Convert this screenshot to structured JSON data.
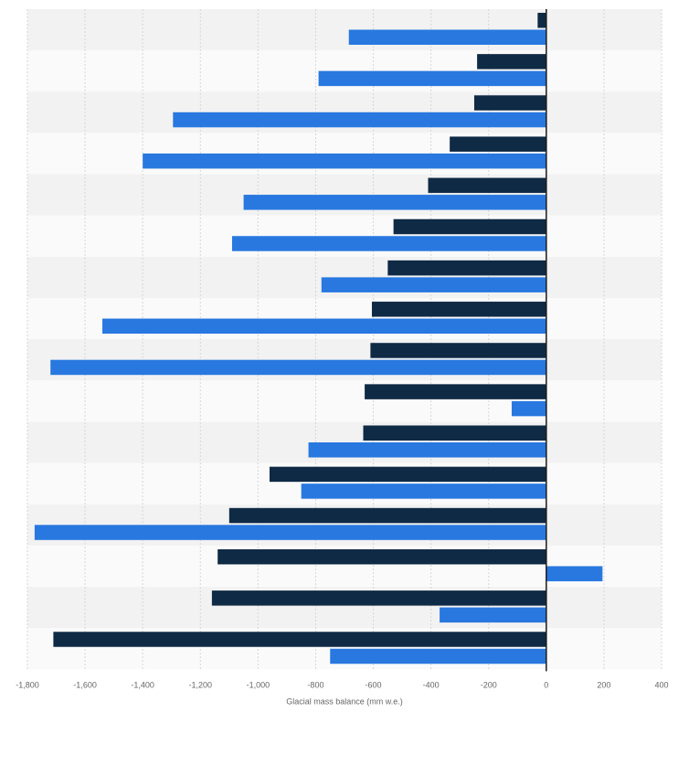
{
  "chart_data": {
    "type": "bar",
    "orientation": "horizontal",
    "xlabel": "Glacial mass balance (mm w.e.)",
    "ylabel": "",
    "xlim": [
      -1800,
      400
    ],
    "xticks": [
      -1800,
      -1600,
      -1400,
      -1200,
      -1000,
      -800,
      -600,
      -400,
      -200,
      0,
      200,
      400
    ],
    "xtick_labels": [
      "-1,800",
      "-1,600",
      "-1,400",
      "-1,200",
      "-1,000",
      "-800",
      "-600",
      "-400",
      "-200",
      "0",
      "200",
      "400"
    ],
    "grid": true,
    "categories": [
      "",
      "",
      "",
      "",
      "",
      "",
      "",
      "",
      "",
      "",
      "",
      "",
      "",
      "",
      "",
      ""
    ],
    "series": [
      {
        "color": "#0f2a45",
        "values": [
          -30,
          -240,
          -250,
          -335,
          -410,
          -530,
          -550,
          -605,
          -610,
          -630,
          -635,
          -960,
          -1100,
          -1140,
          -1160,
          -1710
        ]
      },
      {
        "color": "#2878e0",
        "values": [
          -685,
          -790,
          -1295,
          -1400,
          -1050,
          -1090,
          -780,
          -1540,
          -1720,
          -120,
          -825,
          -850,
          -1775,
          195,
          -370,
          -750
        ]
      }
    ],
    "band_colors": [
      "#f2f2f2",
      "#fafafa"
    ],
    "zero_line_color": "#1a1a1a"
  }
}
